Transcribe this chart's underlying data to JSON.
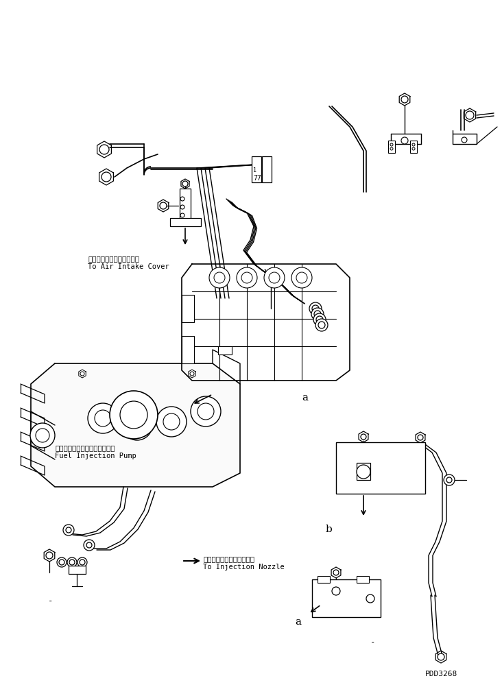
{
  "bg_color": "#ffffff",
  "line_color": "#000000",
  "part_code": "PDD3268",
  "labels": {
    "air_intake_jp": "エアーインテークカバーヘ",
    "air_intake_en": "To Air Intake Cover",
    "pump_jp": "フェルインジェクションポンプ",
    "pump_en": "Fuel Injection Pump",
    "nozzle_jp": "インジェクションノズルヘ",
    "nozzle_en": "To Injection Nozzle"
  },
  "figsize": [
    7.32,
    9.99
  ],
  "dpi": 100
}
